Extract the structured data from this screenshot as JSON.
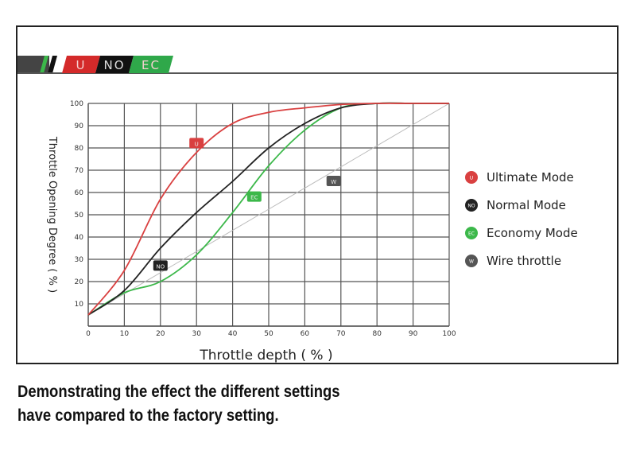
{
  "banner": {
    "labels": [
      "U",
      "NO",
      "EC"
    ],
    "colors": [
      "#d42a2a",
      "#111111",
      "#2fa84a"
    ]
  },
  "caption": {
    "line1": "Demonstrating the effect the different settings",
    "line2": "have compared to the factory setting."
  },
  "chart_data": {
    "type": "line",
    "xlabel": "Throttle depth ( % )",
    "ylabel": "Throttle Opening Degree ( % )",
    "xlim": [
      0,
      100
    ],
    "ylim": [
      0,
      100
    ],
    "xticks": [
      0,
      10,
      20,
      30,
      40,
      50,
      60,
      70,
      80,
      90,
      100
    ],
    "yticks": [
      10,
      20,
      30,
      40,
      50,
      60,
      70,
      80,
      90,
      100
    ],
    "grid": true,
    "legend_position": "right",
    "x": [
      0,
      10,
      20,
      30,
      40,
      50,
      60,
      70,
      80,
      90,
      100
    ],
    "series": [
      {
        "name": "Ultimate Mode",
        "tag": "U",
        "color": "#d94040",
        "values": [
          5,
          25,
          57,
          78,
          91,
          96,
          98,
          99.5,
          100,
          100,
          100
        ],
        "tag_at": [
          30,
          82
        ]
      },
      {
        "name": "Normal Mode",
        "tag": "NO",
        "color": "#222222",
        "values": [
          5,
          16,
          35,
          51,
          65,
          80,
          91,
          98,
          100,
          100,
          100
        ],
        "tag_at": [
          20,
          27
        ]
      },
      {
        "name": "Economy Mode",
        "tag": "EC",
        "color": "#3cb84a",
        "values": [
          5,
          15,
          20,
          32,
          51,
          72,
          88,
          98,
          100,
          100,
          100
        ],
        "tag_at": [
          46,
          58
        ]
      },
      {
        "name": "Wire throttle",
        "tag": "W",
        "color": "#bbbbbb",
        "values": [
          5,
          14.5,
          24,
          33.5,
          43,
          52.5,
          62,
          71.5,
          81,
          90.5,
          100
        ],
        "tag_at": [
          68,
          65
        ]
      }
    ]
  }
}
